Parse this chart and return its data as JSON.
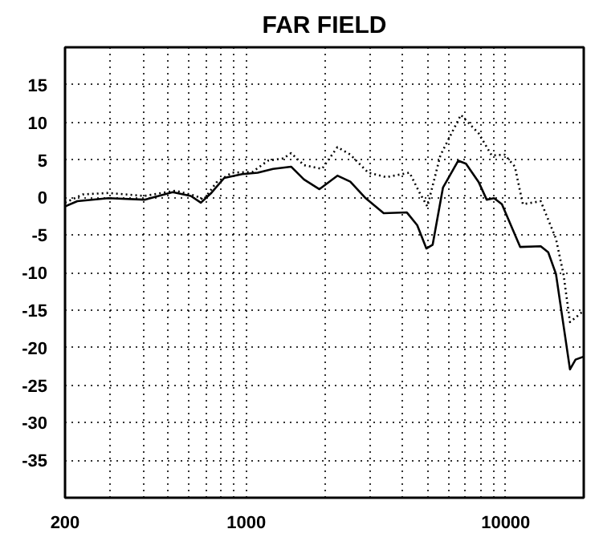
{
  "chart_data": {
    "type": "line",
    "title": "FAR FIELD",
    "log": "x",
    "grid": true,
    "marker": "none",
    "xlim": [
      200,
      20000
    ],
    "ylim": [
      -40,
      20
    ],
    "xticks": [
      200,
      {
        "value": 300,
        "label": null
      },
      {
        "value": 400,
        "label": null
      },
      {
        "value": 500,
        "label": null
      },
      {
        "value": 600,
        "label": null
      },
      {
        "value": 700,
        "label": null
      },
      {
        "value": 800,
        "label": null
      },
      {
        "value": 900,
        "label": null
      },
      1000,
      {
        "value": 2000,
        "label": null
      },
      {
        "value": 3000,
        "label": null
      },
      {
        "value": 4000,
        "label": null
      },
      {
        "value": 5000,
        "label": null
      },
      {
        "value": 6000,
        "label": null
      },
      {
        "value": 7000,
        "label": null
      },
      {
        "value": 8000,
        "label": null
      },
      {
        "value": 9000,
        "label": null
      },
      10000
    ],
    "yticks": [
      15,
      10,
      5,
      0,
      -5,
      -10,
      -15,
      -20,
      -25,
      -30,
      -35
    ],
    "series": [
      {
        "color": "#000000",
        "line_style": "solid",
        "x": [
          200,
          223,
          294,
          405,
          520,
          611,
          668,
          733,
          822,
          964,
          1106,
          1268,
          1488,
          1668,
          1914,
          2245,
          2517,
          2885,
          3386,
          4159,
          4560,
          4946,
          5230,
          5730,
          6565,
          7030,
          7880,
          8450,
          9020,
          9670,
          11380,
          13650,
          14590,
          15630,
          17700,
          18600,
          20000
        ],
        "values": [
          -1.2,
          -0.5,
          -0.1,
          -0.3,
          0.7,
          0.2,
          -0.7,
          0.6,
          2.6,
          3.1,
          3.3,
          3.8,
          4.1,
          2.4,
          1.1,
          2.9,
          2.1,
          -0.1,
          -2.1,
          -2.0,
          -3.7,
          -6.8,
          -6.3,
          1.3,
          4.9,
          4.5,
          2.0,
          -0.3,
          -0.1,
          -0.9,
          -6.6,
          -6.5,
          -7.3,
          -10.2,
          -22.9,
          -21.6,
          -21.2
        ]
      },
      {
        "color": "#000000",
        "line_style": "dotted",
        "x": [
          200,
          234,
          294,
          405,
          532,
          639,
          685,
          767,
          880,
          1056,
          1211,
          1390,
          1488,
          1668,
          1958,
          2245,
          2517,
          2950,
          3465,
          4260,
          4660,
          4990,
          5600,
          6720,
          7880,
          8830,
          9910,
          10850,
          11650,
          13650,
          15630,
          16700,
          17700,
          20000
        ],
        "values": [
          -0.7,
          0.4,
          0.6,
          0.2,
          0.9,
          0.2,
          -0.3,
          2.0,
          3.3,
          3.4,
          4.9,
          5.2,
          5.9,
          4.3,
          3.8,
          6.7,
          5.7,
          3.3,
          2.7,
          3.3,
          0.6,
          -1.2,
          5.6,
          11.0,
          8.5,
          5.6,
          5.7,
          4.1,
          -0.9,
          -0.5,
          -5.5,
          -10.2,
          -16.6,
          -15.1
        ]
      }
    ]
  }
}
